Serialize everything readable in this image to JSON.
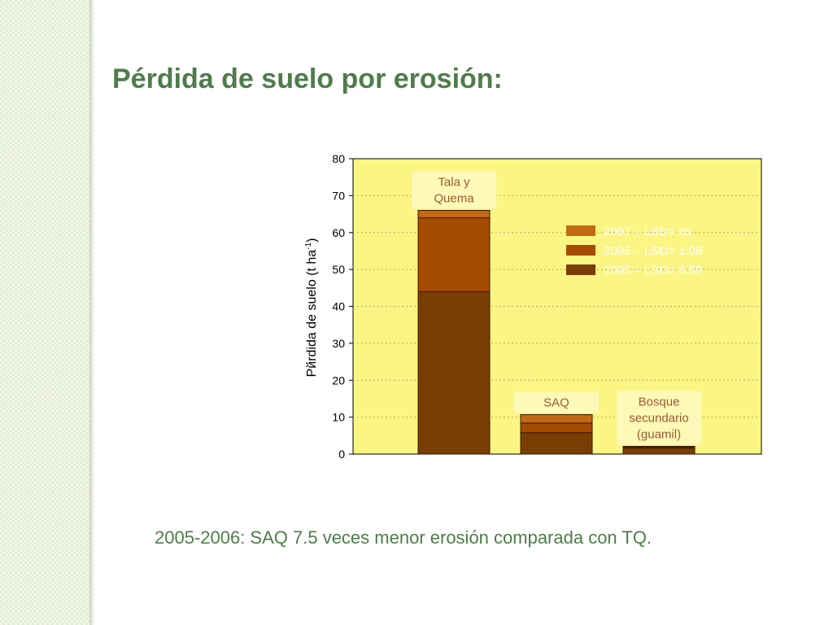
{
  "slide": {
    "title": "Pérdida de suelo por erosión:",
    "caption": "2005-2006: SAQ  7.5 veces menor erosión comparada con TQ."
  },
  "colors": {
    "plot_background": "#fbf583",
    "slide_title": "#4e7d4a",
    "side_pattern": "#e3ecd3"
  },
  "chart_data": {
    "type": "bar",
    "stacked": true,
    "title": "",
    "xlabel": "",
    "ylabel": "Pйrdida de suelo (t ha",
    "ylabel_sup": "-1",
    "ylabel_end": ")",
    "ylim": [
      0,
      80
    ],
    "yticks": [
      0,
      10,
      20,
      30,
      40,
      50,
      60,
      70,
      80
    ],
    "grid": true,
    "legend_position": "top-right",
    "categories": [
      {
        "label_lines": [
          "Tala y",
          "Quema"
        ],
        "label_position": "top"
      },
      {
        "label_lines": [
          "SAQ"
        ],
        "label_position": "top"
      },
      {
        "label_lines": [
          "Bosque",
          "secundario",
          "(guamil)"
        ],
        "label_position": "top"
      }
    ],
    "series": [
      {
        "name": "2005 – LSD= 6.59",
        "color": "#7a3e05",
        "values": [
          44,
          5.8,
          1.6
        ]
      },
      {
        "name": "2006 – LSD= 1.08",
        "color": "#a54c00",
        "values": [
          20,
          2.6,
          0.3
        ]
      },
      {
        "name": "2007 – LSD= ns",
        "color": "#c26a12",
        "values": [
          2,
          2.3,
          0.2
        ]
      }
    ],
    "legend_order": [
      2,
      1,
      0
    ]
  }
}
